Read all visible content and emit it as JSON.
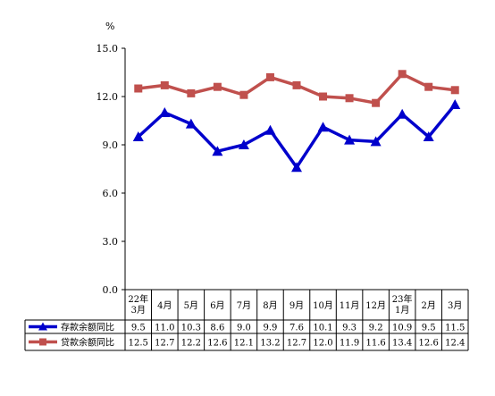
{
  "chart_data": {
    "type": "line",
    "unit": "%",
    "ylim": [
      0,
      15
    ],
    "yticks": [
      "0.0",
      "3.0",
      "6.0",
      "9.0",
      "12.0",
      "15.0"
    ],
    "categories": [
      [
        "22年",
        "3月"
      ],
      [
        "4月"
      ],
      [
        "5月"
      ],
      [
        "6月"
      ],
      [
        "7月"
      ],
      [
        "8月"
      ],
      [
        "9月"
      ],
      [
        "10月"
      ],
      [
        "11月"
      ],
      [
        "12月"
      ],
      [
        "23年",
        "1月"
      ],
      [
        "2月"
      ],
      [
        "3月"
      ]
    ],
    "series": [
      {
        "name": "存款余额同比",
        "color": "#0000cc",
        "marker": "triangle",
        "values": [
          9.5,
          11.0,
          10.3,
          8.6,
          9.0,
          9.9,
          7.6,
          10.1,
          9.3,
          9.2,
          10.9,
          9.5,
          11.5
        ],
        "labels": [
          "9.5",
          "11.0",
          "10.3",
          "8.6",
          "9.0",
          "9.9",
          "7.6",
          "10.1",
          "9.3",
          "9.2",
          "10.9",
          "9.5",
          "11.5"
        ]
      },
      {
        "name": "贷款余额同比",
        "color": "#c0504d",
        "marker": "square",
        "values": [
          12.5,
          12.7,
          12.2,
          12.6,
          12.1,
          13.2,
          12.7,
          12.0,
          11.9,
          11.6,
          13.4,
          12.6,
          12.4
        ],
        "labels": [
          "12.5",
          "12.7",
          "12.2",
          "12.6",
          "12.1",
          "13.2",
          "12.7",
          "12.0",
          "11.9",
          "11.6",
          "13.4",
          "12.6",
          "12.4"
        ]
      }
    ]
  }
}
